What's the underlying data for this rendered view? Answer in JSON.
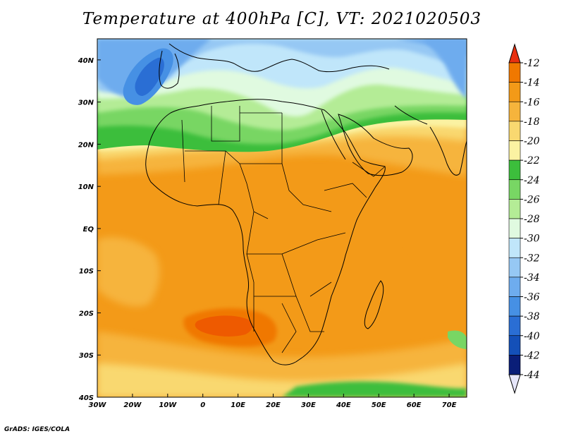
{
  "title": "Temperature at 400hPa [C], VT: 2021020503",
  "credit": "GrADS: IGES/COLA",
  "map": {
    "variable": "Temperature",
    "level": "400hPa",
    "units": "C",
    "valid_time": "2021020503",
    "lon_range": [
      -30,
      75
    ],
    "lat_range": [
      -40,
      45
    ],
    "lat_ticks": [
      {
        "value": 40,
        "label": "40N"
      },
      {
        "value": 30,
        "label": "30N"
      },
      {
        "value": 20,
        "label": "20N"
      },
      {
        "value": 10,
        "label": "10N"
      },
      {
        "value": 0,
        "label": "EQ"
      },
      {
        "value": -10,
        "label": "10S"
      },
      {
        "value": -20,
        "label": "20S"
      },
      {
        "value": -30,
        "label": "30S"
      },
      {
        "value": -40,
        "label": "40S"
      }
    ],
    "lon_ticks": [
      {
        "value": -30,
        "label": "30W"
      },
      {
        "value": -20,
        "label": "20W"
      },
      {
        "value": -10,
        "label": "10W"
      },
      {
        "value": 0,
        "label": "0"
      },
      {
        "value": 10,
        "label": "10E"
      },
      {
        "value": 20,
        "label": "20E"
      },
      {
        "value": 30,
        "label": "30E"
      },
      {
        "value": 40,
        "label": "40E"
      },
      {
        "value": 50,
        "label": "50E"
      },
      {
        "value": 60,
        "label": "60E"
      },
      {
        "value": 70,
        "label": "70E"
      }
    ]
  },
  "colorbar": {
    "levels": [
      {
        "label": "-12",
        "color": "#ee3a00"
      },
      {
        "label": "-14",
        "color": "#f07800"
      },
      {
        "label": "-16",
        "color": "#f39a18"
      },
      {
        "label": "-18",
        "color": "#f6b43c"
      },
      {
        "label": "-20",
        "color": "#f9d870"
      },
      {
        "label": "-22",
        "color": "#fbf2a2"
      },
      {
        "label": "-24",
        "color": "#3cbe3c"
      },
      {
        "label": "-26",
        "color": "#78d664"
      },
      {
        "label": "-28",
        "color": "#b4ec96"
      },
      {
        "label": "-30",
        "color": "#e0fae0"
      },
      {
        "label": "-32",
        "color": "#c0e6fa"
      },
      {
        "label": "-34",
        "color": "#96c8f4"
      },
      {
        "label": "-36",
        "color": "#6eacee"
      },
      {
        "label": "-38",
        "color": "#4690e4"
      },
      {
        "label": "-40",
        "color": "#2a6ed4"
      },
      {
        "label": "-42",
        "color": "#1450b8"
      },
      {
        "label": "-44",
        "color": "#0a1e78"
      }
    ],
    "top_arrow_color": "#e83010",
    "bottom_arrow_color": "#e6e6fa"
  }
}
